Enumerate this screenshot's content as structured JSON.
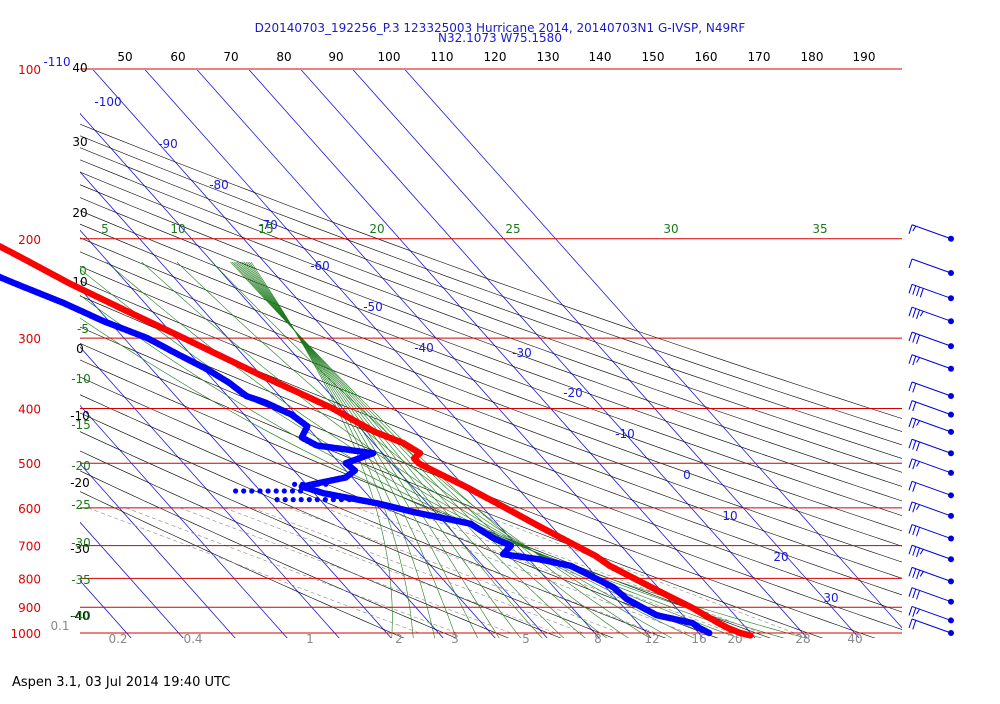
{
  "title": {
    "line1": "D20140703_192256_P.3 123325003 Hurricane 2014, 20140703N1 G-IVSP, N49RF",
    "line2": "N32.1073 W75.1580"
  },
  "footer": "Aspen 3.1, 03 Jul 2014  19:40 UTC",
  "colors": {
    "title": "#1a1acc",
    "isobar": "#d40000",
    "isobar_label": "#e00000",
    "isotherm": "#1a1adc",
    "theta_label": "#000000",
    "dry_adiabat": "#000000",
    "moist_adiabat": "#1a7a1a",
    "mixing_ratio": "#888888",
    "temperature": "#ff0000",
    "dewpoint": "#0000ff",
    "wind": "#0000dd"
  },
  "chart_data": {
    "type": "scatter",
    "diagram": "skew-T log-P",
    "pressure_levels": [
      {
        "value": 100,
        "label": "100"
      },
      {
        "value": 200,
        "label": "200"
      },
      {
        "value": 300,
        "label": "300"
      },
      {
        "value": 400,
        "label": "400"
      },
      {
        "value": 500,
        "label": "500"
      },
      {
        "value": 600,
        "label": "600"
      },
      {
        "value": 700,
        "label": "700"
      },
      {
        "value": 800,
        "label": "800"
      },
      {
        "value": 900,
        "label": "900"
      },
      {
        "value": 1000,
        "label": "1000"
      }
    ],
    "theta_top_labels": [
      "50",
      "60",
      "70",
      "80",
      "90",
      "100",
      "110",
      "120",
      "130",
      "140",
      "150",
      "160",
      "170",
      "180",
      "190"
    ],
    "theta_left_labels": [
      "40",
      "30",
      "20",
      "10",
      "0",
      "-10",
      "-20",
      "-30",
      "-40"
    ],
    "isotherm_labels": [
      "-110",
      "-100",
      "-90",
      "-80",
      "-70",
      "-60",
      "-50",
      "-40",
      "-30",
      "-20",
      "-10",
      "0",
      "10",
      "20",
      "30"
    ],
    "moist_adiabat_top_labels": [
      "5",
      "10",
      "15",
      "20",
      "25",
      "30",
      "35"
    ],
    "moist_adiabat_left_labels": [
      "0",
      "-5",
      "-10",
      "-15",
      "-20",
      "-25",
      "-30",
      "-35",
      "-40"
    ],
    "mixing_ratio_labels": [
      "0.1",
      "0.2",
      "0.4",
      "1",
      "2",
      "3",
      "5",
      "8",
      "12",
      "16",
      "20",
      "28",
      "40"
    ],
    "temperature_profile": {
      "name": "Temperature",
      "points": [
        {
          "p": 1010,
          "t": 28.5
        },
        {
          "p": 1000,
          "t": 27.0
        },
        {
          "p": 980,
          "t": 25.5
        },
        {
          "p": 960,
          "t": 24.5
        },
        {
          "p": 935,
          "t": 23.5
        },
        {
          "p": 900,
          "t": 22.0
        },
        {
          "p": 850,
          "t": 19.0
        },
        {
          "p": 800,
          "t": 16.0
        },
        {
          "p": 760,
          "t": 13.5
        },
        {
          "p": 730,
          "t": 12.5
        },
        {
          "p": 700,
          "t": 10.5
        },
        {
          "p": 650,
          "t": 7.0
        },
        {
          "p": 600,
          "t": 3.5
        },
        {
          "p": 550,
          "t": -0.5
        },
        {
          "p": 520,
          "t": -3.5
        },
        {
          "p": 500,
          "t": -5.5
        },
        {
          "p": 490,
          "t": -5.5
        },
        {
          "p": 480,
          "t": -3.5
        },
        {
          "p": 460,
          "t": -5.0
        },
        {
          "p": 440,
          "t": -8.5
        },
        {
          "p": 420,
          "t": -10.5
        },
        {
          "p": 400,
          "t": -12.5
        },
        {
          "p": 380,
          "t": -15.5
        },
        {
          "p": 350,
          "t": -20.5
        },
        {
          "p": 300,
          "t": -29.0
        },
        {
          "p": 270,
          "t": -35.0
        },
        {
          "p": 240,
          "t": -41.5
        },
        {
          "p": 215,
          "t": -46.5
        },
        {
          "p": 200,
          "t": -50.0
        }
      ]
    },
    "dewpoint_profile": {
      "name": "Dewpoint",
      "points": [
        {
          "p": 1000,
          "t": 21.0
        },
        {
          "p": 980,
          "t": 20.0
        },
        {
          "p": 960,
          "t": 19.5
        },
        {
          "p": 930,
          "t": 14.0
        },
        {
          "p": 900,
          "t": 12.5
        },
        {
          "p": 870,
          "t": 11.0
        },
        {
          "p": 830,
          "t": 10.5
        },
        {
          "p": 790,
          "t": 8.0
        },
        {
          "p": 760,
          "t": 6.0
        },
        {
          "p": 740,
          "t": 1.0
        },
        {
          "p": 725,
          "t": -5.0
        },
        {
          "p": 700,
          "t": -2.0
        },
        {
          "p": 680,
          "t": -4.0
        },
        {
          "p": 660,
          "t": -5.0
        },
        {
          "p": 640,
          "t": -6.0
        },
        {
          "p": 610,
          "t": -15.0
        },
        {
          "p": 590,
          "t": -20.0
        },
        {
          "p": 565,
          "t": -29.0
        },
        {
          "p": 550,
          "t": -32.0
        },
        {
          "p": 530,
          "t": -22.0
        },
        {
          "p": 515,
          "t": -19.0
        },
        {
          "p": 500,
          "t": -19.5
        },
        {
          "p": 480,
          "t": -12.5
        },
        {
          "p": 465,
          "t": -22.0
        },
        {
          "p": 450,
          "t": -23.5
        },
        {
          "p": 430,
          "t": -20.5
        },
        {
          "p": 410,
          "t": -21.5
        },
        {
          "p": 390,
          "t": -24.5
        },
        {
          "p": 380,
          "t": -27.0
        },
        {
          "p": 360,
          "t": -28.0
        },
        {
          "p": 340,
          "t": -30.0
        },
        {
          "p": 320,
          "t": -33.0
        },
        {
          "p": 300,
          "t": -36.0
        },
        {
          "p": 280,
          "t": -41.5
        },
        {
          "p": 260,
          "t": -46.0
        },
        {
          "p": 240,
          "t": -52.0
        },
        {
          "p": 225,
          "t": -56.5
        },
        {
          "p": 215,
          "t": -60.0
        }
      ]
    },
    "dewpoint_dotted_excursions": [
      {
        "p": 580,
        "t_from": -39.0,
        "t_to": -22.0
      },
      {
        "p": 560,
        "t_from": -45.5,
        "t_to": -33.0
      },
      {
        "p": 545,
        "t_from": -33.0,
        "t_to": -25.5
      }
    ],
    "wind_barbs_kt": [
      {
        "p": 200,
        "speed": 55
      },
      {
        "p": 230,
        "speed": 50
      },
      {
        "p": 255,
        "speed": 40
      },
      {
        "p": 280,
        "speed": 35
      },
      {
        "p": 310,
        "speed": 30
      },
      {
        "p": 340,
        "speed": 25
      },
      {
        "p": 380,
        "speed": 20
      },
      {
        "p": 410,
        "speed": 20
      },
      {
        "p": 440,
        "speed": 25
      },
      {
        "p": 480,
        "speed": 30
      },
      {
        "p": 520,
        "speed": 25
      },
      {
        "p": 570,
        "speed": 20
      },
      {
        "p": 620,
        "speed": 25
      },
      {
        "p": 680,
        "speed": 30
      },
      {
        "p": 740,
        "speed": 35
      },
      {
        "p": 810,
        "speed": 35
      },
      {
        "p": 880,
        "speed": 30
      },
      {
        "p": 950,
        "speed": 25
      },
      {
        "p": 1000,
        "speed": 20
      }
    ],
    "grid": true
  }
}
